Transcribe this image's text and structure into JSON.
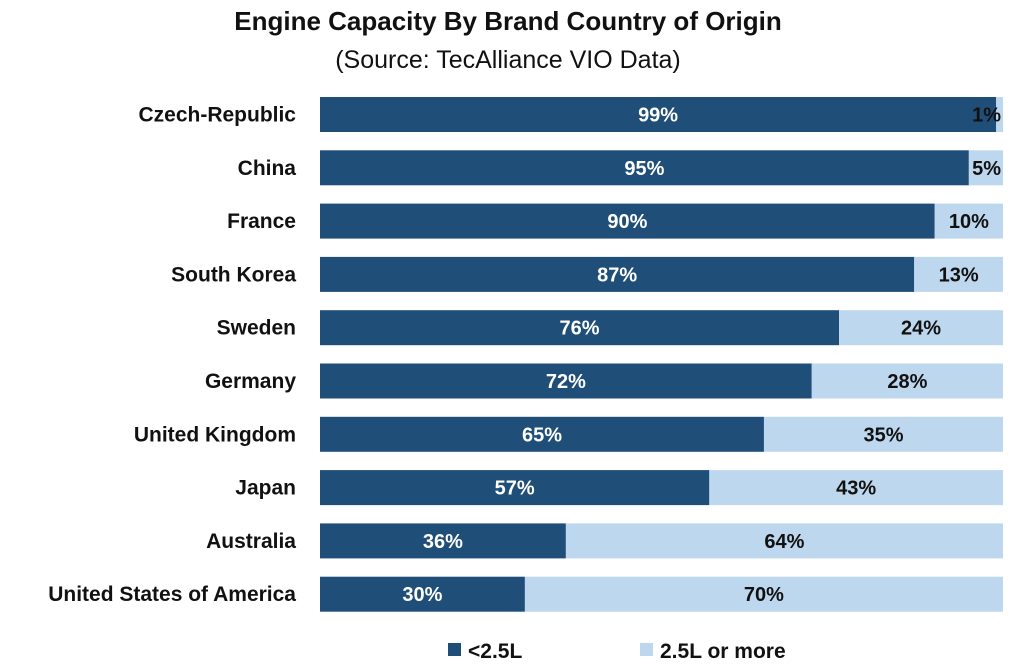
{
  "chart_data": {
    "type": "bar",
    "orientation": "horizontal",
    "stacked": true,
    "normalized_percent": true,
    "title": "Engine Capacity By Brand Country of Origin",
    "subtitle": "(Source: TecAlliance VIO Data)",
    "categories": [
      "Czech-Republic",
      "China",
      "France",
      "South Korea",
      "Sweden",
      "Germany",
      "United Kingdom",
      "Japan",
      "Australia",
      "United States of America"
    ],
    "series": [
      {
        "name": "<2.5L",
        "color": "#1f4e79",
        "label_color": "#ffffff",
        "values": [
          99,
          95,
          90,
          87,
          76,
          72,
          65,
          57,
          36,
          30
        ]
      },
      {
        "name": "2.5L or more",
        "color": "#bdd7ee",
        "label_color": "#111111",
        "values": [
          1,
          5,
          10,
          13,
          24,
          28,
          35,
          43,
          64,
          70
        ]
      }
    ],
    "value_suffix": "%",
    "xlim": [
      0,
      100
    ],
    "grid": false,
    "axes_visible": false,
    "legend": "bottom-center"
  }
}
